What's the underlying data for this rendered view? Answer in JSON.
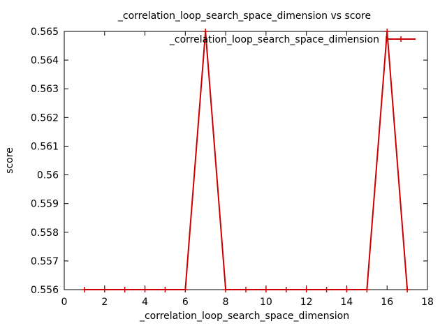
{
  "chart_data": {
    "type": "line",
    "title": "_correlation_loop_search_space_dimension vs score",
    "xlabel": "_correlation_loop_search_space_dimension",
    "ylabel": "score",
    "xlim": [
      0,
      18
    ],
    "ylim": [
      0.556,
      0.565
    ],
    "xticks": [
      0,
      2,
      4,
      6,
      8,
      10,
      12,
      14,
      16,
      18
    ],
    "yticks": [
      0.556,
      0.557,
      0.558,
      0.559,
      0.56,
      0.561,
      0.562,
      0.563,
      0.564,
      0.565
    ],
    "ytick_labels": [
      "0.556",
      "0.557",
      "0.558",
      "0.559",
      "0.56",
      "0.561",
      "0.562",
      "0.563",
      "0.564",
      "0.565"
    ],
    "legend_position": "top-right",
    "grid": false,
    "series": [
      {
        "name": "_correlation_loop_search_space_dimension",
        "color": "#cc0000",
        "x": [
          1,
          2,
          3,
          4,
          5,
          6,
          7,
          8,
          9,
          10,
          11,
          12,
          13,
          14,
          15,
          16,
          17
        ],
        "y": [
          0.556,
          0.556,
          0.556,
          0.556,
          0.556,
          0.556,
          0.565,
          0.556,
          0.556,
          0.556,
          0.556,
          0.556,
          0.556,
          0.556,
          0.556,
          0.565,
          0.556
        ]
      }
    ]
  }
}
